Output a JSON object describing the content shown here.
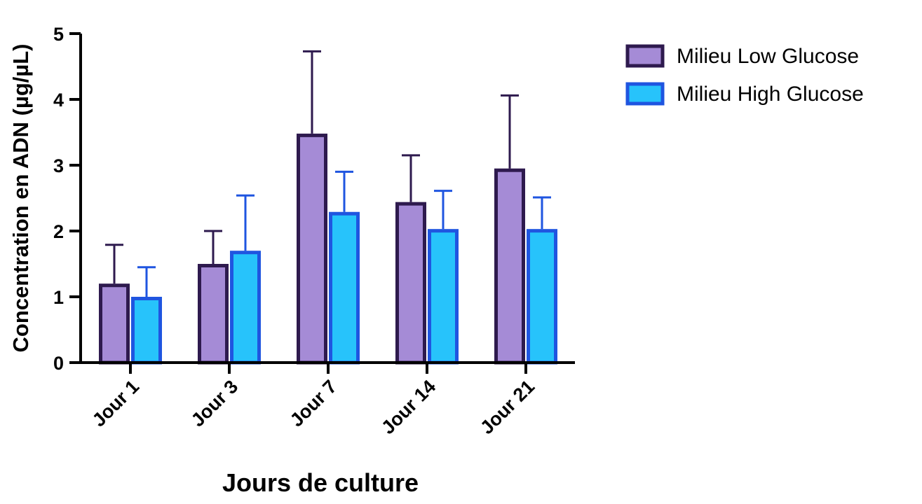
{
  "chart_data": {
    "type": "bar",
    "categories": [
      "Jour 1",
      "Jour 3",
      "Jour 7",
      "Jour 14",
      "Jour 21"
    ],
    "series": [
      {
        "name": "Milieu Low Glucose",
        "values": [
          1.2,
          1.5,
          3.48,
          2.44,
          2.95
        ],
        "error_upper": [
          0.59,
          0.5,
          1.25,
          0.71,
          1.11
        ],
        "fill": "#a58bd6",
        "stroke": "#2e1a4e"
      },
      {
        "name": "Milieu High Glucose",
        "values": [
          1.0,
          1.7,
          2.29,
          2.03,
          2.03
        ],
        "error_upper": [
          0.45,
          0.84,
          0.61,
          0.58,
          0.48
        ],
        "fill": "#27c3fb",
        "stroke": "#1f55e0"
      }
    ],
    "xlabel": "Jours de culture",
    "ylabel": "Concentration en ADN (µg/µL)",
    "ylim": [
      0,
      5
    ],
    "yticks": [
      "0",
      "1",
      "2",
      "3",
      "4",
      "5"
    ],
    "grid": false,
    "legend_position": "top-right"
  }
}
